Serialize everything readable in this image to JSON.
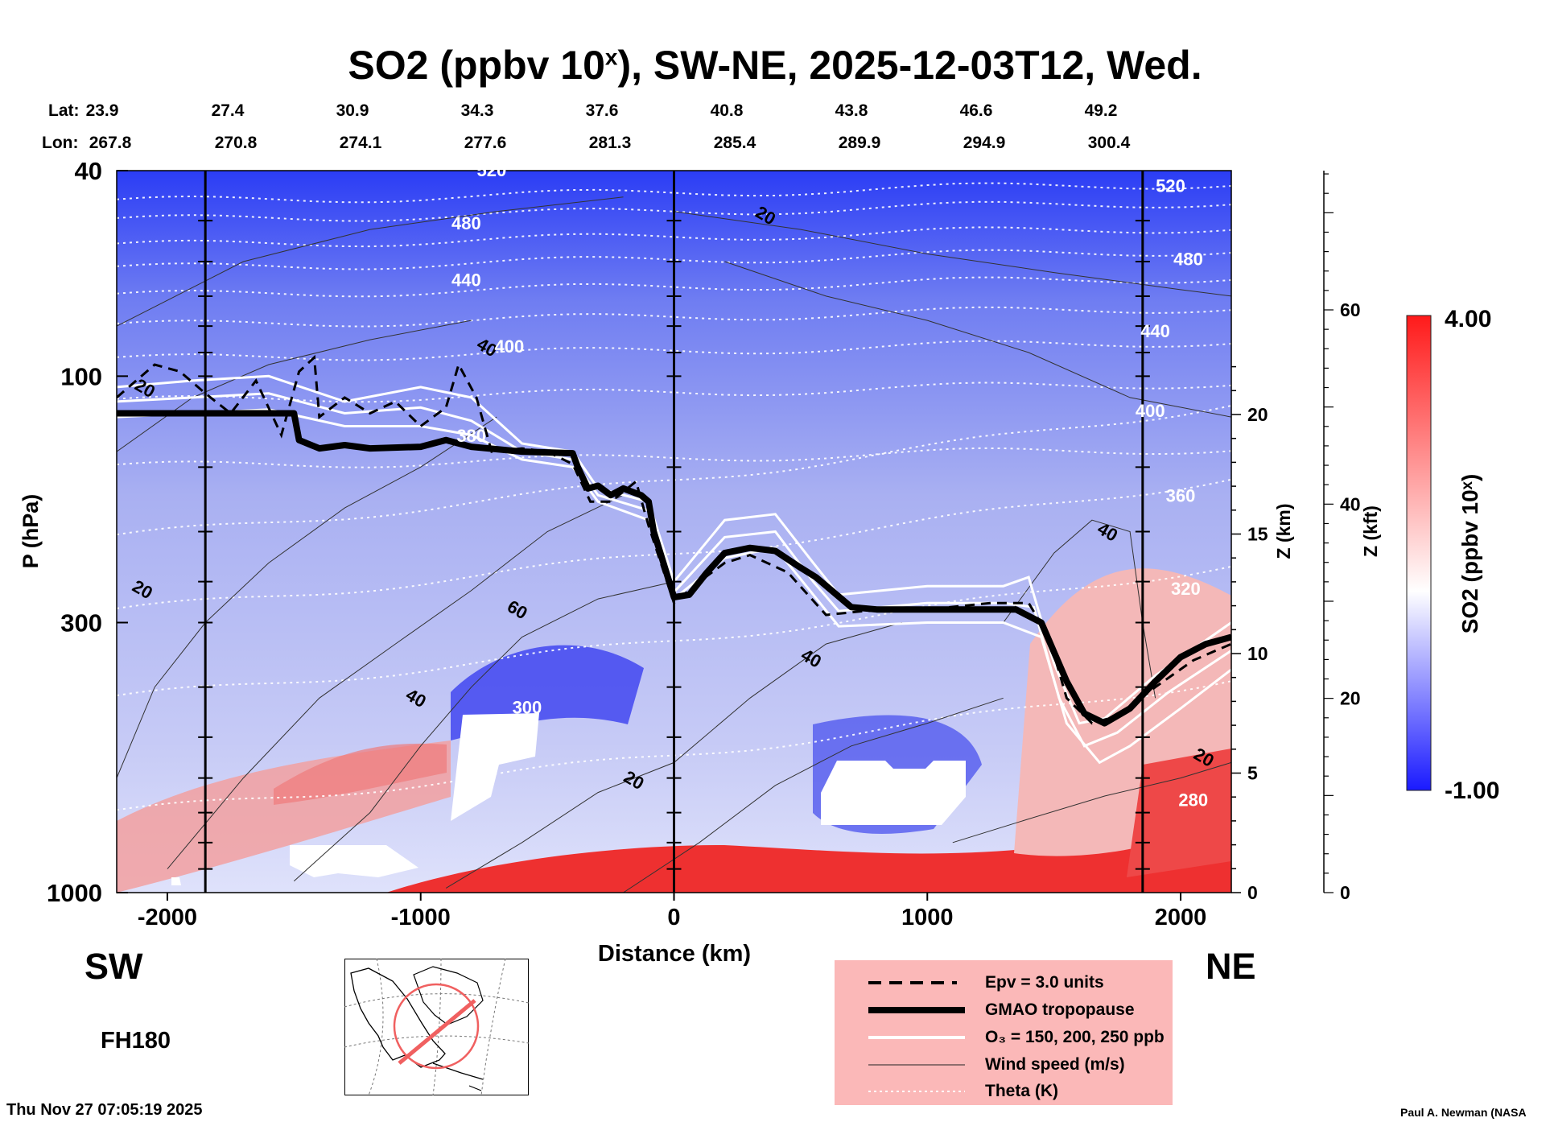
{
  "title": {
    "prefix": "SO2 (ppbv 10",
    "sup": "x",
    "suffix": "), SW-NE, 2025-12-03T12, Wed."
  },
  "lat_label": "Lat:",
  "lon_label": "Lon:",
  "lats": [
    "23.9",
    "27.4",
    "30.9",
    "34.3",
    "37.6",
    "40.8",
    "43.8",
    "46.6",
    "49.2"
  ],
  "lons": [
    "267.8",
    "270.8",
    "274.1",
    "277.6",
    "281.3",
    "285.4",
    "289.9",
    "294.9",
    "300.4"
  ],
  "sw_label": "SW",
  "ne_label": "NE",
  "forecast_hour": "FH180",
  "timestamp": "Thu Nov 27 07:05:19 2025",
  "credit": "Paul A. Newman (NASA",
  "legend": {
    "epv": "Epv = 3.0 units",
    "tropopause": "GMAO tropopause",
    "ozone": "O₃ = 150, 200, 250 ppb",
    "wind": "Wind speed (m/s)",
    "theta": "Theta (K)",
    "bg_color": "#fbb8b8"
  },
  "colorbar": {
    "max_label": "4.00",
    "min_label": "-1.00",
    "title": "SO2 (ppbv 10ˣ)",
    "colors": [
      "#1a1aff",
      "#ffffff",
      "#ff1a1a"
    ]
  },
  "chart_data": {
    "type": "heatmap",
    "title": "SO2 (ppbv 10^x), SW-NE, 2025-12-03T12, Wed.",
    "xlabel": "Distance (km)",
    "ylabel": "P (hPa)",
    "z_km_label": "Z (km)",
    "z_kft_label": "Z (kft)",
    "xlim": [
      -2200,
      2200
    ],
    "ylim_hpa": [
      1000,
      40
    ],
    "x_ticks": [
      {
        "v": -2000,
        "label": "-2000"
      },
      {
        "v": -1000,
        "label": "-1000"
      },
      {
        "v": 0,
        "label": "0"
      },
      {
        "v": 1000,
        "label": "1000"
      },
      {
        "v": 2000,
        "label": "2000"
      }
    ],
    "p_ticks": [
      {
        "p": 40,
        "label": "40"
      },
      {
        "p": 100,
        "label": "100"
      },
      {
        "p": 300,
        "label": "300"
      },
      {
        "p": 1000,
        "label": "1000"
      }
    ],
    "z_km_ticks": [
      {
        "v": 0,
        "label": "0"
      },
      {
        "v": 5,
        "label": "5"
      },
      {
        "v": 10,
        "label": "10"
      },
      {
        "v": 15,
        "label": "15"
      },
      {
        "v": 20,
        "label": "20"
      }
    ],
    "z_kft_ticks": [
      {
        "v": 0,
        "label": "0"
      },
      {
        "v": 20,
        "label": "20"
      },
      {
        "v": 40,
        "label": "40"
      },
      {
        "v": 60,
        "label": "60"
      }
    ],
    "vertical_lines_km": [
      -1850,
      0,
      1850
    ],
    "colorbar_range": [
      -1.0,
      4.0
    ],
    "tropopause": [
      [
        -2200,
        118
      ],
      [
        -1500,
        118
      ],
      [
        -1480,
        133
      ],
      [
        -1400,
        138
      ],
      [
        -1300,
        136
      ],
      [
        -1200,
        138
      ],
      [
        -1000,
        137
      ],
      [
        -900,
        133
      ],
      [
        -800,
        137
      ],
      [
        -600,
        140
      ],
      [
        -400,
        141
      ],
      [
        -380,
        150
      ],
      [
        -340,
        165
      ],
      [
        -300,
        163
      ],
      [
        -250,
        170
      ],
      [
        -200,
        165
      ],
      [
        -130,
        170
      ],
      [
        -100,
        175
      ],
      [
        -80,
        200
      ],
      [
        -60,
        215
      ],
      [
        0,
        268
      ],
      [
        60,
        265
      ],
      [
        130,
        240
      ],
      [
        200,
        220
      ],
      [
        300,
        215
      ],
      [
        400,
        218
      ],
      [
        500,
        235
      ],
      [
        560,
        245
      ],
      [
        700,
        280
      ],
      [
        800,
        283
      ],
      [
        1000,
        283
      ],
      [
        1200,
        283
      ],
      [
        1350,
        283
      ],
      [
        1450,
        300
      ],
      [
        1550,
        390
      ],
      [
        1620,
        450
      ],
      [
        1700,
        470
      ],
      [
        1800,
        440
      ],
      [
        1900,
        390
      ],
      [
        2000,
        350
      ],
      [
        2100,
        330
      ],
      [
        2200,
        320
      ]
    ],
    "wind_labels": [
      {
        "x": -2100,
        "p": 108,
        "text": "20"
      },
      {
        "x": -2110,
        "p": 265,
        "text": "20"
      },
      {
        "x": -750,
        "p": 90,
        "text": "40"
      },
      {
        "x": -630,
        "p": 290,
        "text": "60"
      },
      {
        "x": -1030,
        "p": 430,
        "text": "40"
      },
      {
        "x": -170,
        "p": 620,
        "text": "20"
      },
      {
        "x": 530,
        "p": 360,
        "text": "40"
      },
      {
        "x": 350,
        "p": 50,
        "text": "20"
      },
      {
        "x": 1700,
        "p": 205,
        "text": "40"
      },
      {
        "x": 2080,
        "p": 560,
        "text": "20"
      }
    ],
    "theta_labels": [
      {
        "x": -720,
        "p": 41,
        "text": "520"
      },
      {
        "x": 1960,
        "p": 44,
        "text": "520"
      },
      {
        "x": -820,
        "p": 52,
        "text": "480"
      },
      {
        "x": 2030,
        "p": 61,
        "text": "480"
      },
      {
        "x": -820,
        "p": 67,
        "text": "440"
      },
      {
        "x": 1900,
        "p": 84,
        "text": "440"
      },
      {
        "x": -650,
        "p": 90,
        "text": "400"
      },
      {
        "x": 1880,
        "p": 120,
        "text": "400"
      },
      {
        "x": 2000,
        "p": 175,
        "text": "360"
      },
      {
        "x": -800,
        "p": 134,
        "text": "380"
      },
      {
        "x": 2020,
        "p": 265,
        "text": "320"
      },
      {
        "x": 2050,
        "p": 680,
        "text": "280"
      },
      {
        "x": -580,
        "p": 450,
        "text": "300"
      }
    ],
    "theta_levels_k": [
      520,
      500,
      480,
      460,
      440,
      420,
      400,
      380,
      360,
      340,
      320,
      300,
      280
    ]
  }
}
